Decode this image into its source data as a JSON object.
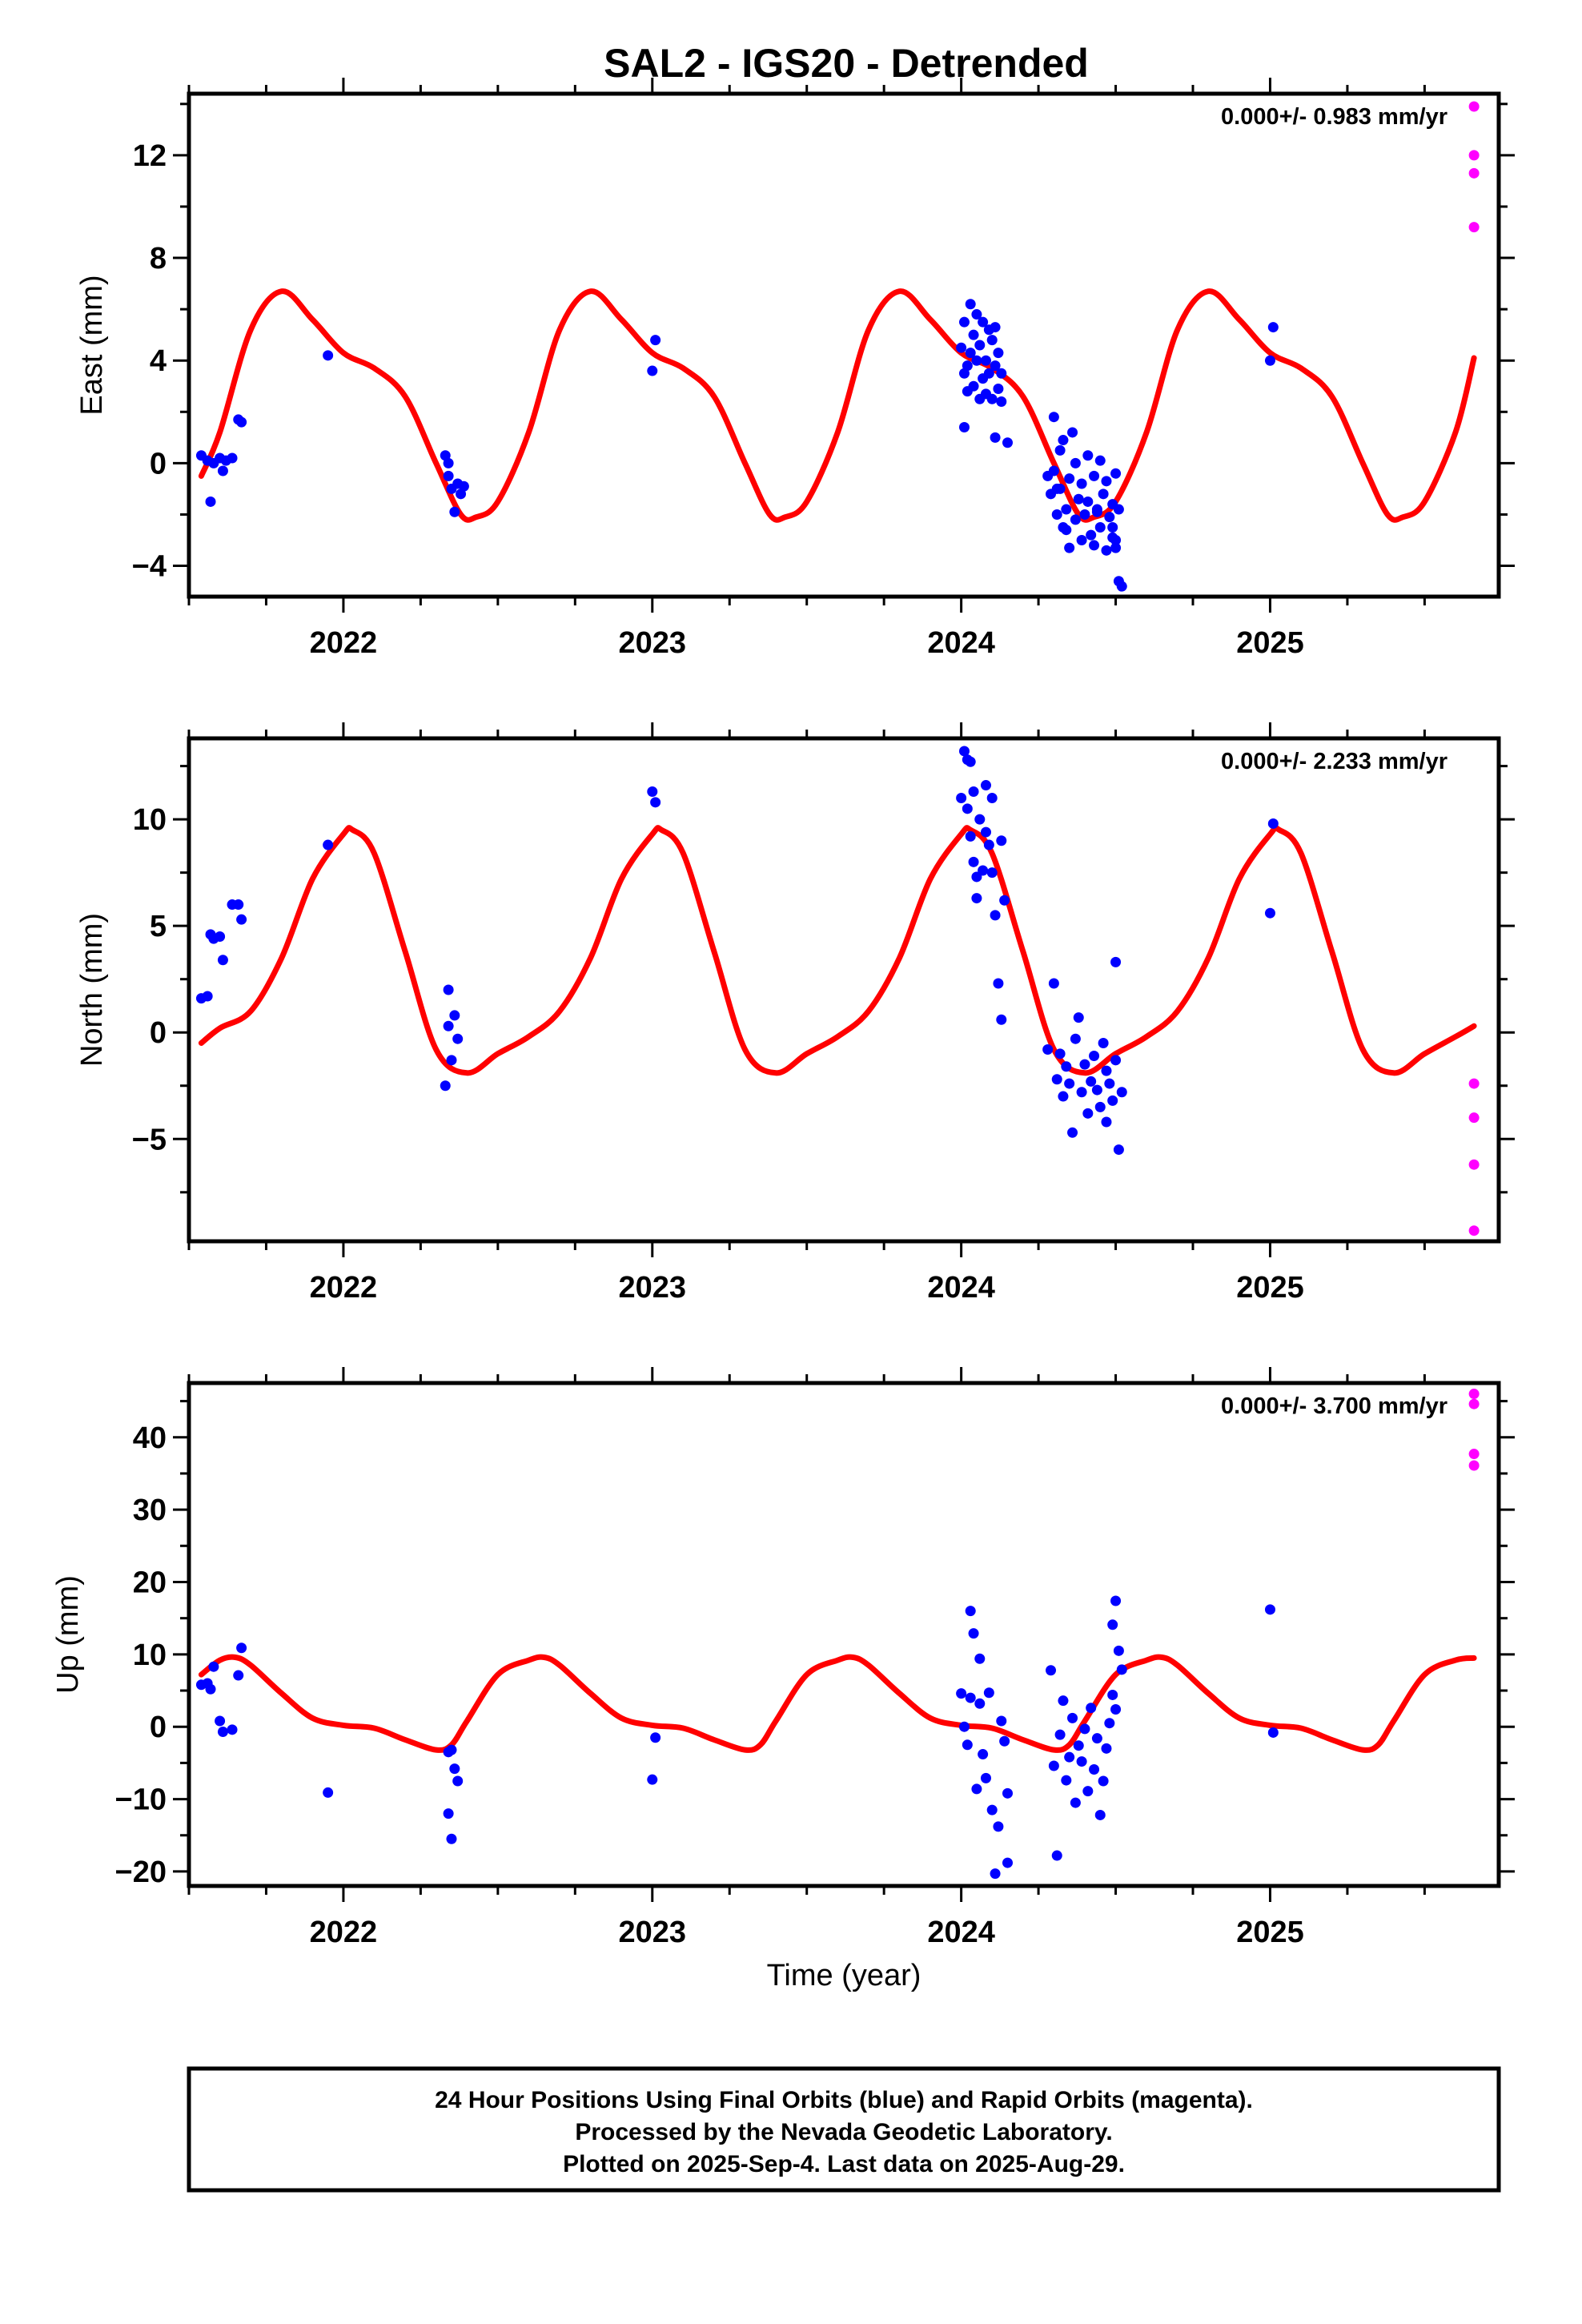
{
  "figure": {
    "title": "SAL2 - IGS20 - Detrended",
    "xlabel": "Time (year)",
    "final_color": "#0000ff",
    "rapid_color": "#ff00ff",
    "model_color": "#ff0000"
  },
  "chart_data": [
    {
      "type": "scatter",
      "name": "east",
      "ylabel": "East (mm)",
      "rate_text": "0.000+/- 0.983 mm/yr",
      "xlim": [
        2021.5,
        2025.74
      ],
      "ylim": [
        -5.2,
        14.4
      ],
      "x_ticks": [
        2022,
        2023,
        2024,
        2025
      ],
      "x_tick_labels": [
        "2022",
        "2023",
        "2024",
        "2025"
      ],
      "y_ticks": [
        -4,
        0,
        4,
        8,
        12
      ],
      "y_tick_labels": [
        "−4",
        "0",
        "4",
        "8",
        "12"
      ],
      "model": {
        "x": [
          2021.54,
          2021.6,
          2021.7,
          2021.8,
          2021.9,
          2022.0,
          2022.1,
          2022.2,
          2022.3,
          2022.38,
          2022.43,
          2022.5,
          2022.6,
          2022.7,
          2022.8,
          2022.9,
          2023.0,
          2023.1,
          2023.2,
          2023.3,
          2023.38,
          2023.43,
          2023.5,
          2023.6,
          2023.7,
          2023.8,
          2023.9,
          2024.0,
          2024.1,
          2024.2,
          2024.3,
          2024.38,
          2024.43,
          2024.5,
          2024.6,
          2024.7,
          2024.8,
          2024.9,
          2025.0,
          2025.1,
          2025.2,
          2025.3,
          2025.38,
          2025.43,
          2025.5,
          2025.6,
          2025.66
        ],
        "y": [
          -0.5,
          1.2,
          5.2,
          6.7,
          5.6,
          4.3,
          3.7,
          2.6,
          0.0,
          -2.0,
          -2.1,
          -1.5,
          1.2,
          5.2,
          6.7,
          5.6,
          4.3,
          3.7,
          2.6,
          0.0,
          -2.0,
          -2.1,
          -1.5,
          1.2,
          5.2,
          6.7,
          5.6,
          4.3,
          3.7,
          2.6,
          0.0,
          -2.0,
          -2.1,
          -1.5,
          1.2,
          5.2,
          6.7,
          5.6,
          4.3,
          3.7,
          2.6,
          0.0,
          -2.0,
          -2.1,
          -1.5,
          1.2,
          4.1
        ]
      },
      "final": {
        "x": [
          2021.54,
          2021.56,
          2021.57,
          2021.58,
          2021.6,
          2021.61,
          2021.62,
          2021.64,
          2021.66,
          2021.67,
          2021.95,
          2022.33,
          2022.34,
          2022.35,
          2022.36,
          2022.37,
          2022.38,
          2022.39,
          2022.34,
          2023.0,
          2023.01,
          2024.0,
          2024.01,
          2024.01,
          2024.02,
          2024.02,
          2024.03,
          2024.03,
          2024.04,
          2024.04,
          2024.05,
          2024.05,
          2024.06,
          2024.06,
          2024.07,
          2024.07,
          2024.08,
          2024.08,
          2024.09,
          2024.09,
          2024.1,
          2024.1,
          2024.11,
          2024.11,
          2024.12,
          2024.12,
          2024.13,
          2024.13,
          2024.15,
          2024.01,
          2024.11,
          2024.28,
          2024.29,
          2024.3,
          2024.3,
          2024.31,
          2024.32,
          2024.32,
          2024.33,
          2024.33,
          2024.34,
          2024.35,
          2024.35,
          2024.36,
          2024.37,
          2024.37,
          2024.38,
          2024.39,
          2024.39,
          2024.4,
          2024.41,
          2024.41,
          2024.42,
          2024.43,
          2024.43,
          2024.44,
          2024.45,
          2024.45,
          2024.46,
          2024.47,
          2024.47,
          2024.48,
          2024.49,
          2024.49,
          2024.5,
          2024.5,
          2024.51,
          2024.51,
          2024.52,
          2024.49,
          2024.5,
          2024.31,
          2024.34,
          2024.44,
          2025.0,
          2025.01
        ],
        "y": [
          0.3,
          0.1,
          -1.5,
          0.0,
          0.2,
          -0.3,
          0.1,
          0.2,
          1.7,
          1.6,
          4.2,
          0.3,
          -0.5,
          -1.0,
          -1.9,
          -0.8,
          -1.2,
          -0.9,
          0.0,
          3.6,
          4.8,
          4.5,
          3.5,
          5.5,
          3.8,
          2.8,
          6.2,
          4.3,
          5.0,
          3.0,
          5.8,
          4.0,
          2.5,
          4.6,
          3.3,
          5.5,
          2.7,
          4.0,
          5.2,
          3.5,
          4.8,
          2.5,
          3.8,
          1.0,
          4.3,
          2.9,
          2.4,
          3.5,
          0.8,
          1.4,
          5.3,
          -0.5,
          -1.2,
          1.8,
          -0.3,
          -2.0,
          0.5,
          -1.0,
          -2.5,
          0.9,
          -1.8,
          -0.6,
          -3.3,
          1.2,
          -2.2,
          0.0,
          -1.4,
          -3.0,
          -0.8,
          -2.0,
          0.3,
          -1.5,
          -2.8,
          -0.5,
          -3.2,
          -1.9,
          0.1,
          -2.5,
          -1.2,
          -3.4,
          -0.7,
          -2.1,
          -1.6,
          -2.9,
          -0.4,
          -3.0,
          -1.8,
          -4.6,
          -4.8,
          -2.5,
          -3.3,
          -1.0,
          -2.6,
          -1.8,
          4.0,
          5.3
        ]
      },
      "rapid": {
        "x": [
          2025.66,
          2025.66,
          2025.66,
          2025.66
        ],
        "y": [
          13.9,
          12.0,
          11.3,
          9.2
        ]
      }
    },
    {
      "type": "scatter",
      "name": "north",
      "ylabel": "North (mm)",
      "rate_text": "0.000+/- 2.233 mm/yr",
      "xlim": [
        2021.5,
        2025.74
      ],
      "ylim": [
        -9.8,
        13.8
      ],
      "x_ticks": [
        2022,
        2023,
        2024,
        2025
      ],
      "x_tick_labels": [
        "2022",
        "2023",
        "2024",
        "2025"
      ],
      "y_ticks": [
        -5,
        0,
        5,
        10
      ],
      "y_tick_labels": [
        "−5",
        "0",
        "5",
        "10"
      ],
      "model": {
        "x": [
          2021.54,
          2021.6,
          2021.7,
          2021.8,
          2021.9,
          2022.0,
          2022.03,
          2022.1,
          2022.2,
          2022.3,
          2022.4,
          2022.5,
          2022.6,
          2022.7,
          2022.8,
          2022.9,
          2023.0,
          2023.03,
          2023.1,
          2023.2,
          2023.3,
          2023.4,
          2023.5,
          2023.6,
          2023.7,
          2023.8,
          2023.9,
          2024.0,
          2024.03,
          2024.1,
          2024.2,
          2024.3,
          2024.4,
          2024.5,
          2024.6,
          2024.7,
          2024.8,
          2024.9,
          2025.0,
          2025.03,
          2025.1,
          2025.2,
          2025.3,
          2025.4,
          2025.5,
          2025.6,
          2025.66
        ],
        "y": [
          -0.5,
          0.2,
          1.0,
          3.5,
          7.2,
          9.3,
          9.5,
          8.4,
          3.8,
          -0.8,
          -1.9,
          -1.0,
          -0.2,
          1.0,
          3.5,
          7.2,
          9.3,
          9.5,
          8.4,
          3.8,
          -0.8,
          -1.9,
          -1.0,
          -0.2,
          1.0,
          3.5,
          7.2,
          9.3,
          9.5,
          8.4,
          3.8,
          -0.8,
          -1.9,
          -1.0,
          -0.2,
          1.0,
          3.5,
          7.2,
          9.3,
          9.5,
          8.4,
          3.8,
          -0.8,
          -1.9,
          -1.0,
          -0.2,
          0.3
        ]
      },
      "final": {
        "x": [
          2021.54,
          2021.56,
          2021.57,
          2021.58,
          2021.6,
          2021.61,
          2021.64,
          2021.66,
          2021.67,
          2021.95,
          2022.33,
          2022.34,
          2022.35,
          2022.36,
          2022.37,
          2022.34,
          2023.0,
          2023.01,
          2024.0,
          2024.01,
          2024.02,
          2024.02,
          2024.03,
          2024.03,
          2024.04,
          2024.04,
          2024.05,
          2024.05,
          2024.06,
          2024.07,
          2024.08,
          2024.08,
          2024.09,
          2024.1,
          2024.1,
          2024.11,
          2024.12,
          2024.13,
          2024.13,
          2024.14,
          2024.28,
          2024.3,
          2024.31,
          2024.32,
          2024.33,
          2024.34,
          2024.35,
          2024.36,
          2024.37,
          2024.38,
          2024.39,
          2024.4,
          2024.41,
          2024.42,
          2024.43,
          2024.44,
          2024.45,
          2024.46,
          2024.47,
          2024.48,
          2024.49,
          2024.5,
          2024.51,
          2024.52,
          2024.5,
          2024.47,
          2025.0,
          2025.01
        ],
        "y": [
          1.6,
          1.7,
          4.6,
          4.4,
          4.5,
          3.4,
          6.0,
          6.0,
          5.3,
          8.8,
          -2.5,
          2.0,
          -1.3,
          0.8,
          -0.3,
          0.3,
          11.3,
          10.8,
          11.0,
          13.2,
          12.8,
          10.5,
          9.2,
          12.7,
          8.0,
          11.3,
          7.3,
          6.3,
          10.0,
          7.6,
          11.6,
          9.4,
          8.8,
          7.5,
          11.0,
          5.5,
          2.3,
          0.6,
          9.0,
          6.2,
          -0.8,
          2.3,
          -2.2,
          -1.0,
          -3.0,
          -1.6,
          -2.4,
          -4.7,
          -0.3,
          0.7,
          -2.8,
          -1.5,
          -3.8,
          -2.3,
          -1.1,
          -2.7,
          -3.5,
          -0.5,
          -1.8,
          -2.4,
          -3.2,
          -1.3,
          -5.5,
          -2.8,
          3.3,
          -4.2,
          5.6,
          9.8
        ]
      },
      "rapid": {
        "x": [
          2025.66,
          2025.66,
          2025.66,
          2025.66
        ],
        "y": [
          -2.4,
          -4.0,
          -6.2,
          -9.3
        ]
      }
    },
    {
      "type": "scatter",
      "name": "up",
      "ylabel": "Up (mm)",
      "rate_text": "0.000+/- 3.700 mm/yr",
      "xlim": [
        2021.5,
        2025.74
      ],
      "ylim": [
        -22,
        47.5
      ],
      "x_ticks": [
        2022,
        2023,
        2024,
        2025
      ],
      "x_tick_labels": [
        "2022",
        "2023",
        "2024",
        "2025"
      ],
      "y_ticks": [
        -20,
        -10,
        0,
        10,
        20,
        30,
        40
      ],
      "y_tick_labels": [
        "−20",
        "−10",
        "0",
        "10",
        "20",
        "30",
        "40"
      ],
      "model": {
        "x": [
          2021.54,
          2021.6,
          2021.65,
          2021.7,
          2021.8,
          2021.9,
          2022.0,
          2022.1,
          2022.2,
          2022.3,
          2022.35,
          2022.4,
          2022.5,
          2022.6,
          2022.65,
          2022.7,
          2022.8,
          2022.9,
          2023.0,
          2023.1,
          2023.2,
          2023.3,
          2023.35,
          2023.4,
          2023.5,
          2023.6,
          2023.65,
          2023.7,
          2023.8,
          2023.9,
          2024.0,
          2024.1,
          2024.2,
          2024.3,
          2024.35,
          2024.4,
          2024.5,
          2024.6,
          2024.65,
          2024.7,
          2024.8,
          2024.9,
          2025.0,
          2025.1,
          2025.2,
          2025.3,
          2025.35,
          2025.4,
          2025.5,
          2025.6,
          2025.66
        ],
        "y": [
          7.2,
          9.2,
          9.6,
          8.5,
          4.6,
          1.2,
          0.2,
          -0.2,
          -1.8,
          -3.2,
          -2.5,
          0.8,
          7.2,
          9.2,
          9.6,
          8.5,
          4.6,
          1.2,
          0.2,
          -0.2,
          -1.8,
          -3.2,
          -2.5,
          0.8,
          7.2,
          9.2,
          9.6,
          8.5,
          4.6,
          1.2,
          0.2,
          -0.2,
          -1.8,
          -3.2,
          -2.5,
          0.8,
          7.2,
          9.2,
          9.6,
          8.5,
          4.6,
          1.2,
          0.2,
          -0.2,
          -1.8,
          -3.2,
          -2.5,
          0.8,
          7.2,
          9.2,
          9.5
        ]
      },
      "final": {
        "x": [
          2021.54,
          2021.56,
          2021.57,
          2021.58,
          2021.6,
          2021.61,
          2021.64,
          2021.66,
          2021.67,
          2021.95,
          2022.34,
          2022.35,
          2022.36,
          2022.37,
          2022.34,
          2022.35,
          2023.0,
          2023.01,
          2024.0,
          2024.01,
          2024.02,
          2024.03,
          2024.03,
          2024.04,
          2024.05,
          2024.06,
          2024.06,
          2024.07,
          2024.08,
          2024.09,
          2024.1,
          2024.11,
          2024.12,
          2024.13,
          2024.14,
          2024.15,
          2024.15,
          2024.29,
          2024.3,
          2024.31,
          2024.32,
          2024.33,
          2024.34,
          2024.35,
          2024.36,
          2024.37,
          2024.38,
          2024.39,
          2024.4,
          2024.41,
          2024.42,
          2024.43,
          2024.44,
          2024.45,
          2024.46,
          2024.47,
          2024.48,
          2024.49,
          2024.5,
          2024.51,
          2024.52,
          2024.5,
          2024.49,
          2025.0,
          2025.01
        ],
        "y": [
          5.8,
          6.0,
          5.2,
          8.3,
          0.8,
          -0.7,
          -0.4,
          7.1,
          10.9,
          -9.1,
          -3.5,
          -15.5,
          -5.8,
          -7.5,
          -12.0,
          -3.2,
          -7.3,
          -1.5,
          4.6,
          0.0,
          -2.5,
          16.0,
          4.0,
          12.9,
          -8.6,
          3.2,
          9.4,
          -3.8,
          -7.1,
          4.7,
          -11.5,
          -20.3,
          -13.8,
          0.8,
          -2.0,
          -18.8,
          -9.2,
          7.8,
          -5.4,
          -17.8,
          -1.1,
          3.6,
          -7.4,
          -4.2,
          1.2,
          -10.5,
          -2.6,
          -4.8,
          -0.3,
          -8.9,
          2.6,
          -5.9,
          -1.6,
          -12.2,
          -7.5,
          -3.0,
          0.5,
          14.1,
          17.4,
          10.5,
          7.9,
          2.4,
          4.4,
          16.2,
          -0.8
        ]
      },
      "rapid": {
        "x": [
          2025.66,
          2025.66,
          2025.66,
          2025.66
        ],
        "y": [
          46.0,
          44.6,
          37.7,
          36.1
        ]
      }
    }
  ],
  "footer": {
    "lines": [
      "24 Hour Positions Using Final Orbits (blue) and Rapid Orbits (magenta).",
      "Processed by the Nevada Geodetic Laboratory.",
      "Plotted on 2025-Sep-4. Last data on 2025-Aug-29."
    ]
  }
}
